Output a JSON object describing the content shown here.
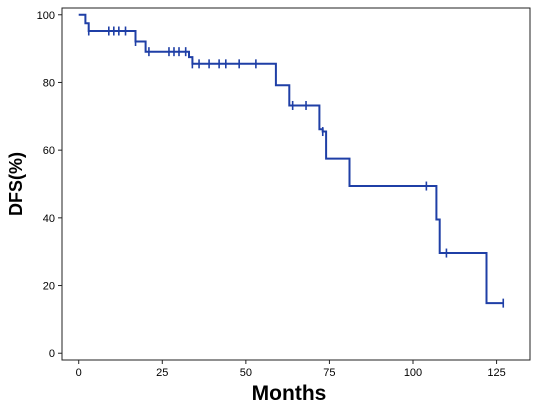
{
  "chart_data": {
    "type": "line",
    "subtype": "kaplan-meier-step",
    "xlabel": "Months",
    "ylabel": "DFS(%)",
    "xlim": [
      -5,
      135
    ],
    "ylim": [
      -2,
      102
    ],
    "xticks": [
      0,
      25,
      50,
      75,
      100,
      125
    ],
    "yticks": [
      0,
      20,
      40,
      60,
      80,
      100
    ],
    "grid": false,
    "legend": "none",
    "line_color": "#1f3fa6",
    "series": [
      {
        "steps": [
          [
            0,
            100
          ],
          [
            2,
            100
          ],
          [
            2,
            97.5
          ],
          [
            3,
            97.5
          ],
          [
            3,
            95.2
          ],
          [
            17,
            95.2
          ],
          [
            17,
            92.1
          ],
          [
            20,
            92.1
          ],
          [
            20,
            89.1
          ],
          [
            33,
            89.1
          ],
          [
            33,
            87.5
          ],
          [
            34,
            87.5
          ],
          [
            34,
            85.5
          ],
          [
            59,
            85.5
          ],
          [
            59,
            79.2
          ],
          [
            63,
            79.2
          ],
          [
            63,
            73.2
          ],
          [
            72,
            73.2
          ],
          [
            72,
            66.2
          ],
          [
            73,
            66.2
          ],
          [
            73,
            65.5
          ],
          [
            74,
            65.5
          ],
          [
            74,
            57.5
          ],
          [
            81,
            57.5
          ],
          [
            81,
            49.4
          ],
          [
            107,
            49.4
          ],
          [
            107,
            39.5
          ],
          [
            108,
            39.5
          ],
          [
            108,
            29.6
          ],
          [
            122,
            29.6
          ],
          [
            122,
            14.8
          ],
          [
            127,
            14.8
          ]
        ],
        "censored": [
          [
            3,
            95.2
          ],
          [
            9,
            95.2
          ],
          [
            10.5,
            95.2
          ],
          [
            12,
            95.2
          ],
          [
            14,
            95.2
          ],
          [
            17,
            92.1
          ],
          [
            21,
            89.1
          ],
          [
            27,
            89.1
          ],
          [
            28.5,
            89.1
          ],
          [
            30,
            89.1
          ],
          [
            32,
            89.1
          ],
          [
            34,
            85.5
          ],
          [
            36,
            85.5
          ],
          [
            39,
            85.5
          ],
          [
            42,
            85.5
          ],
          [
            44,
            85.5
          ],
          [
            48,
            85.5
          ],
          [
            53,
            85.5
          ],
          [
            64,
            73.2
          ],
          [
            68,
            73.2
          ],
          [
            73,
            65.5
          ],
          [
            104,
            49.4
          ],
          [
            110,
            29.6
          ],
          [
            127,
            14.8
          ]
        ]
      }
    ]
  }
}
